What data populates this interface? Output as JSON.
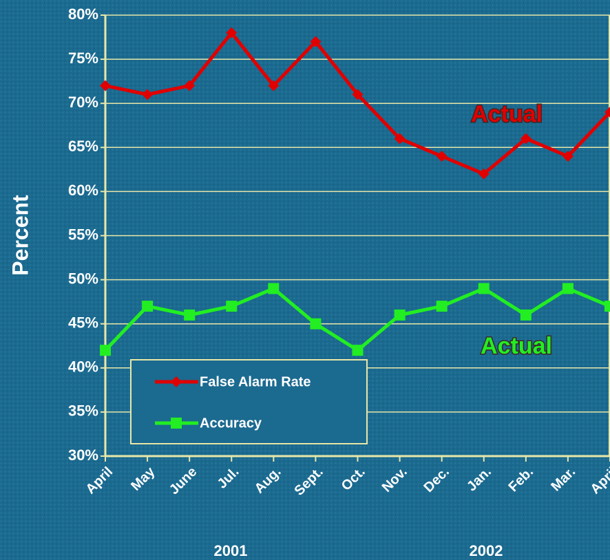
{
  "chart_data": {
    "type": "line",
    "y_label": "Percent",
    "categories": [
      "April",
      "May",
      "June",
      "Jul.",
      "Aug.",
      "Sept.",
      "Oct.",
      "Nov.",
      "Dec.",
      "Jan.",
      "Feb.",
      "Mar.",
      "April"
    ],
    "year_labels": [
      "2001",
      "2002"
    ],
    "series": [
      {
        "name": "False Alarm Rate",
        "color": "#e00000",
        "marker": "diamond",
        "values": [
          72,
          71,
          72,
          78,
          72,
          77,
          71,
          66,
          64,
          62,
          66,
          64,
          69
        ]
      },
      {
        "name": "Accuracy",
        "color": "#22ee22",
        "marker": "square",
        "values": [
          42,
          47,
          46,
          47,
          49,
          45,
          42,
          46,
          47,
          49,
          46,
          49,
          47
        ]
      }
    ],
    "annotations": [
      {
        "text": "Actual",
        "color": "#e00000"
      },
      {
        "text": "Actual",
        "color": "#22ee22"
      }
    ],
    "ylim": [
      30,
      80
    ],
    "yticks": [
      {
        "value": 30,
        "label": "30%"
      },
      {
        "value": 35,
        "label": "35%"
      },
      {
        "value": 40,
        "label": "40%"
      },
      {
        "value": 45,
        "label": "45%"
      },
      {
        "value": 50,
        "label": "50%"
      },
      {
        "value": 55,
        "label": "55%"
      },
      {
        "value": 60,
        "label": "60%"
      },
      {
        "value": 65,
        "label": "65%"
      },
      {
        "value": 70,
        "label": "70%"
      },
      {
        "value": 75,
        "label": "75%"
      },
      {
        "value": 80,
        "label": "80%"
      }
    ],
    "grid": true
  }
}
